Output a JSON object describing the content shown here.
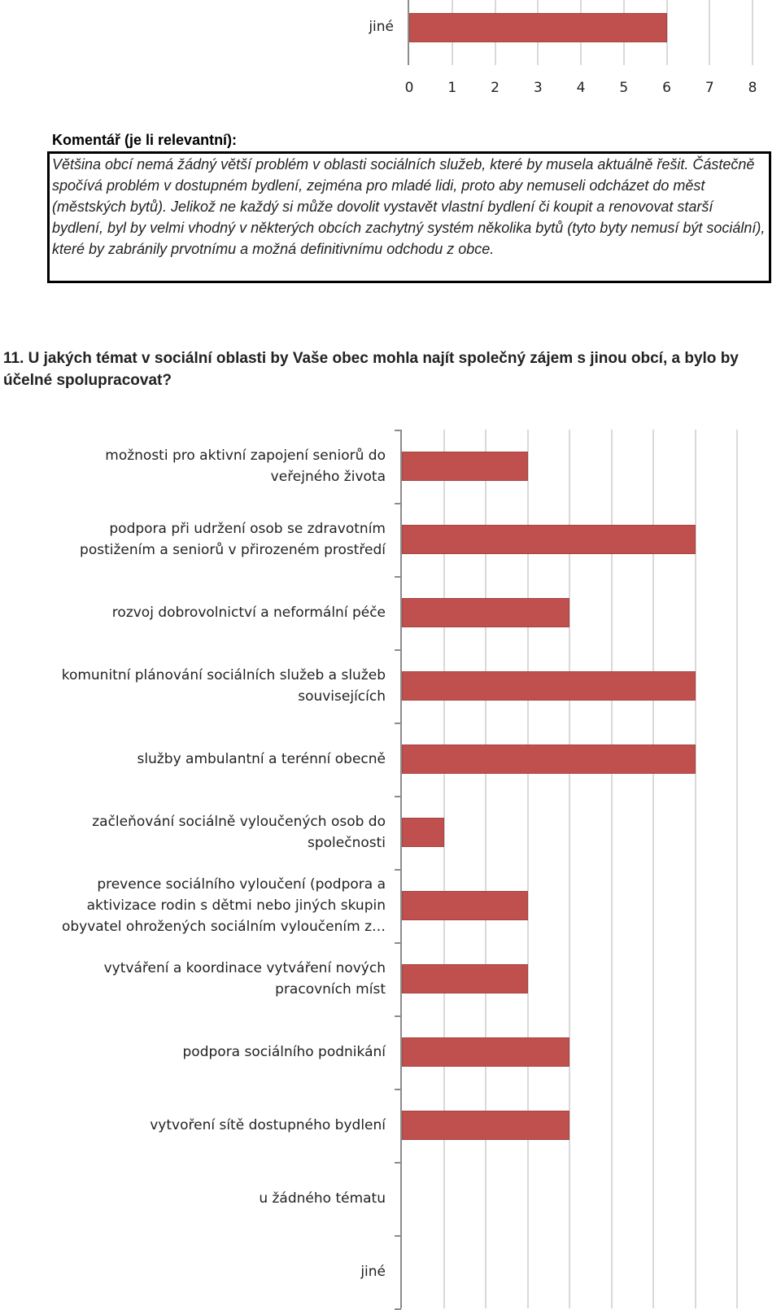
{
  "top_chart": {
    "type": "bar",
    "categories": [
      "jiné"
    ],
    "values": [
      6
    ],
    "xticks": [
      "0",
      "1",
      "2",
      "3",
      "4",
      "5",
      "6",
      "7",
      "8"
    ],
    "xlim": [
      0,
      8
    ],
    "bar_color": "#c0504d",
    "grid": true
  },
  "comment": {
    "heading": "Komentář (je li relevantní):",
    "text": "Většina obcí nemá žádný větší problém v oblasti sociálních služeb, které by musela aktuálně řešit. Částečně spočívá problém v dostupném bydlení, zejména pro mladé lidi, proto aby nemuseli odcházet do měst (městských bytů). Jelikož ne každý si může dovolit vystavět vlastní bydlení či koupit a renovovat starší bydlení, byl by velmi vhodný v některých obcích zachytný systém několika bytů (tyto byty nemusí být sociální), které by zabránily prvotnímu a možná definitivnímu odchodu z obce."
  },
  "question": {
    "title": "11. U jakých témat v sociální oblasti by Vaše obec mohla najít společný zájem s jinou obcí, a bylo by účelné spolupracovat?"
  },
  "chart_data": {
    "type": "bar",
    "orientation": "horizontal",
    "categories": [
      "možnosti pro aktivní zapojení seniorů do veřejného života",
      "podpora při udržení osob se zdravotním postižením a seniorů v přirozeném prostředí",
      "rozvoj dobrovolnictví a neformální péče",
      "komunitní plánování sociálních služeb a služeb souvisejících",
      "služby ambulantní a terénní obecně",
      "začleňování sociálně vyloučených osob do společnosti",
      "prevence sociálního vyloučení (podpora a aktivizace rodin s dětmi nebo jiných skupin obyvatel ohrožených sociálním vyloučením z…",
      "vytváření a koordinace vytváření nových pracovních míst",
      "podpora sociálního podnikání",
      "vytvoření sítě dostupného bydlení",
      "u žádného tématu",
      "jiné"
    ],
    "label_lines": [
      [
        "možnosti pro aktivní zapojení seniorů do",
        "veřejného života"
      ],
      [
        "podpora při udržení osob se zdravotním",
        "postižením a seniorů v přirozeném prostředí"
      ],
      [
        "rozvoj dobrovolnictví a neformální péče"
      ],
      [
        "komunitní plánování sociálních služeb a služeb",
        "souvisejících"
      ],
      [
        "služby ambulantní a terénní obecně"
      ],
      [
        "začleňování sociálně vyloučených osob do",
        "společnosti"
      ],
      [
        "prevence sociálního vyloučení (podpora a",
        "aktivizace rodin s dětmi nebo jiných skupin",
        "obyvatel ohrožených sociálním vyloučením z…"
      ],
      [
        "vytváření a koordinace vytváření nových",
        "pracovních míst"
      ],
      [
        "podpora sociálního podnikání"
      ],
      [
        "vytvoření sítě dostupného bydlení"
      ],
      [
        "u žádného tématu"
      ],
      [
        "jiné"
      ]
    ],
    "values": [
      3,
      7,
      4,
      7,
      7,
      1,
      3,
      3,
      4,
      4,
      0,
      0
    ],
    "xlim": [
      0,
      8
    ],
    "bar_color": "#c0504d",
    "grid": true
  }
}
